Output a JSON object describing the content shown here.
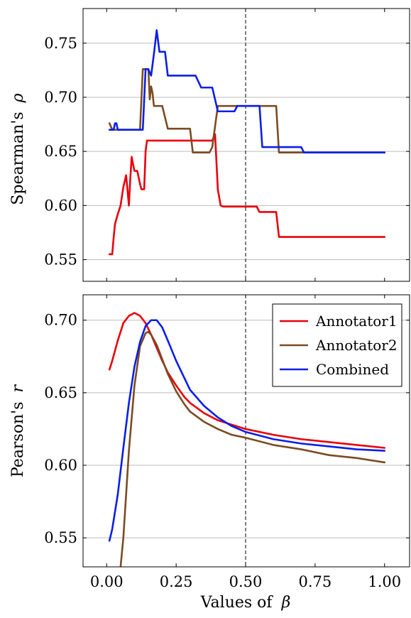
{
  "chart_data": [
    {
      "type": "line",
      "ylabel_text": "Spearman's",
      "ylabel_symbol": "ρ",
      "xlim": [
        -0.085,
        1.09
      ],
      "ylim": [
        0.53,
        0.782
      ],
      "yticks": [
        0.55,
        0.6,
        0.65,
        0.7,
        0.75
      ],
      "ytick_labels": [
        "0.55",
        "0.60",
        "0.65",
        "0.70",
        "0.75"
      ],
      "xticks": [
        0.0,
        0.25,
        0.5,
        0.75,
        1.0
      ],
      "grid": "horizontal",
      "dashed_vline": 0.5,
      "series": [
        {
          "color": "#e8000b",
          "x": [
            0.01,
            0.02,
            0.025,
            0.03,
            0.04,
            0.05,
            0.06,
            0.07,
            0.08,
            0.085,
            0.09,
            0.095,
            0.1,
            0.11,
            0.12,
            0.125,
            0.13,
            0.135,
            0.14,
            0.145,
            0.15,
            0.2,
            0.3,
            0.38,
            0.39,
            0.4,
            0.41,
            0.42,
            0.45,
            0.5,
            0.54,
            0.55,
            0.56,
            0.6,
            0.61,
            0.62,
            0.63,
            0.7,
            1.0
          ],
          "y": [
            0.555,
            0.555,
            0.57,
            0.583,
            0.592,
            0.6,
            0.617,
            0.628,
            0.6,
            0.625,
            0.645,
            0.638,
            0.632,
            0.632,
            0.62,
            0.615,
            0.615,
            0.615,
            0.65,
            0.66,
            0.66,
            0.66,
            0.66,
            0.66,
            0.666,
            0.615,
            0.6,
            0.599,
            0.599,
            0.599,
            0.599,
            0.594,
            0.594,
            0.594,
            0.594,
            0.571,
            0.571,
            0.571,
            0.571
          ]
        },
        {
          "color": "#7a4c22",
          "x": [
            0.01,
            0.02,
            0.025,
            0.03,
            0.06,
            0.1,
            0.12,
            0.13,
            0.14,
            0.145,
            0.15,
            0.155,
            0.16,
            0.165,
            0.17,
            0.18,
            0.19,
            0.2,
            0.22,
            0.24,
            0.26,
            0.3,
            0.31,
            0.32,
            0.36,
            0.37,
            0.38,
            0.4,
            0.5,
            0.55,
            0.6,
            0.61,
            0.62,
            0.7,
            1.0
          ],
          "y": [
            0.676,
            0.67,
            0.67,
            0.67,
            0.67,
            0.67,
            0.67,
            0.726,
            0.726,
            0.726,
            0.726,
            0.698,
            0.71,
            0.704,
            0.692,
            0.692,
            0.692,
            0.692,
            0.671,
            0.671,
            0.671,
            0.671,
            0.649,
            0.649,
            0.649,
            0.649,
            0.654,
            0.692,
            0.692,
            0.692,
            0.692,
            0.692,
            0.649,
            0.649,
            0.649
          ]
        },
        {
          "color": "#0a1ee8",
          "x": [
            0.01,
            0.02,
            0.025,
            0.03,
            0.035,
            0.04,
            0.06,
            0.1,
            0.12,
            0.13,
            0.14,
            0.15,
            0.16,
            0.17,
            0.18,
            0.19,
            0.2,
            0.21,
            0.22,
            0.25,
            0.27,
            0.3,
            0.32,
            0.34,
            0.36,
            0.37,
            0.38,
            0.39,
            0.4,
            0.42,
            0.45,
            0.46,
            0.47,
            0.5,
            0.52,
            0.55,
            0.56,
            0.6,
            0.65,
            0.7,
            0.71,
            0.72,
            0.75,
            1.0
          ],
          "y": [
            0.67,
            0.67,
            0.67,
            0.676,
            0.676,
            0.67,
            0.67,
            0.67,
            0.67,
            0.67,
            0.726,
            0.726,
            0.72,
            0.74,
            0.762,
            0.742,
            0.742,
            0.742,
            0.72,
            0.72,
            0.72,
            0.72,
            0.72,
            0.709,
            0.709,
            0.709,
            0.709,
            0.698,
            0.687,
            0.687,
            0.687,
            0.687,
            0.692,
            0.692,
            0.692,
            0.692,
            0.654,
            0.654,
            0.654,
            0.654,
            0.649,
            0.649,
            0.649,
            0.649
          ]
        }
      ]
    },
    {
      "type": "line",
      "ylabel_text": "Pearson's",
      "ylabel_symbol": "r",
      "xlabel_text": "Values of",
      "xlabel_symbol": "β",
      "xlim": [
        -0.085,
        1.09
      ],
      "ylim": [
        0.53,
        0.7175
      ],
      "yticks": [
        0.55,
        0.6,
        0.65,
        0.7
      ],
      "ytick_labels": [
        "0.55",
        "0.60",
        "0.65",
        "0.70"
      ],
      "xticks": [
        0.0,
        0.25,
        0.5,
        0.75,
        1.0
      ],
      "xtick_labels": [
        "0.00",
        "0.25",
        "0.50",
        "0.75",
        "1.00"
      ],
      "grid": "horizontal",
      "dashed_vline": 0.5,
      "legend_position": "top-right",
      "series": [
        {
          "name": "Annotator1",
          "color": "#e8000b",
          "x": [
            0.01,
            0.02,
            0.04,
            0.06,
            0.08,
            0.1,
            0.12,
            0.14,
            0.16,
            0.18,
            0.2,
            0.22,
            0.25,
            0.28,
            0.3,
            0.35,
            0.4,
            0.45,
            0.5,
            0.6,
            0.7,
            0.8,
            0.9,
            1.0
          ],
          "y": [
            0.666,
            0.672,
            0.686,
            0.698,
            0.703,
            0.705,
            0.703,
            0.698,
            0.69,
            0.681,
            0.672,
            0.664,
            0.655,
            0.647,
            0.643,
            0.636,
            0.631,
            0.628,
            0.625,
            0.621,
            0.618,
            0.616,
            0.614,
            0.612
          ]
        },
        {
          "name": "Annotator2",
          "color": "#7a4c22",
          "x": [
            0.05,
            0.06,
            0.08,
            0.1,
            0.12,
            0.14,
            0.15,
            0.16,
            0.18,
            0.2,
            0.22,
            0.25,
            0.28,
            0.3,
            0.35,
            0.4,
            0.45,
            0.5,
            0.6,
            0.7,
            0.8,
            0.9,
            1.0
          ],
          "y": [
            0.53,
            0.55,
            0.61,
            0.655,
            0.682,
            0.691,
            0.692,
            0.69,
            0.683,
            0.673,
            0.663,
            0.651,
            0.642,
            0.637,
            0.63,
            0.625,
            0.621,
            0.619,
            0.614,
            0.611,
            0.607,
            0.605,
            0.602
          ]
        },
        {
          "name": "Combined",
          "color": "#0a1ee8",
          "x": [
            0.01,
            0.02,
            0.04,
            0.06,
            0.08,
            0.1,
            0.12,
            0.14,
            0.16,
            0.18,
            0.2,
            0.22,
            0.25,
            0.28,
            0.3,
            0.35,
            0.4,
            0.45,
            0.5,
            0.6,
            0.7,
            0.8,
            0.9,
            1.0
          ],
          "y": [
            0.548,
            0.556,
            0.58,
            0.612,
            0.643,
            0.668,
            0.685,
            0.696,
            0.7,
            0.7,
            0.695,
            0.686,
            0.672,
            0.66,
            0.652,
            0.641,
            0.633,
            0.627,
            0.623,
            0.618,
            0.615,
            0.613,
            0.611,
            0.61
          ]
        }
      ]
    }
  ]
}
